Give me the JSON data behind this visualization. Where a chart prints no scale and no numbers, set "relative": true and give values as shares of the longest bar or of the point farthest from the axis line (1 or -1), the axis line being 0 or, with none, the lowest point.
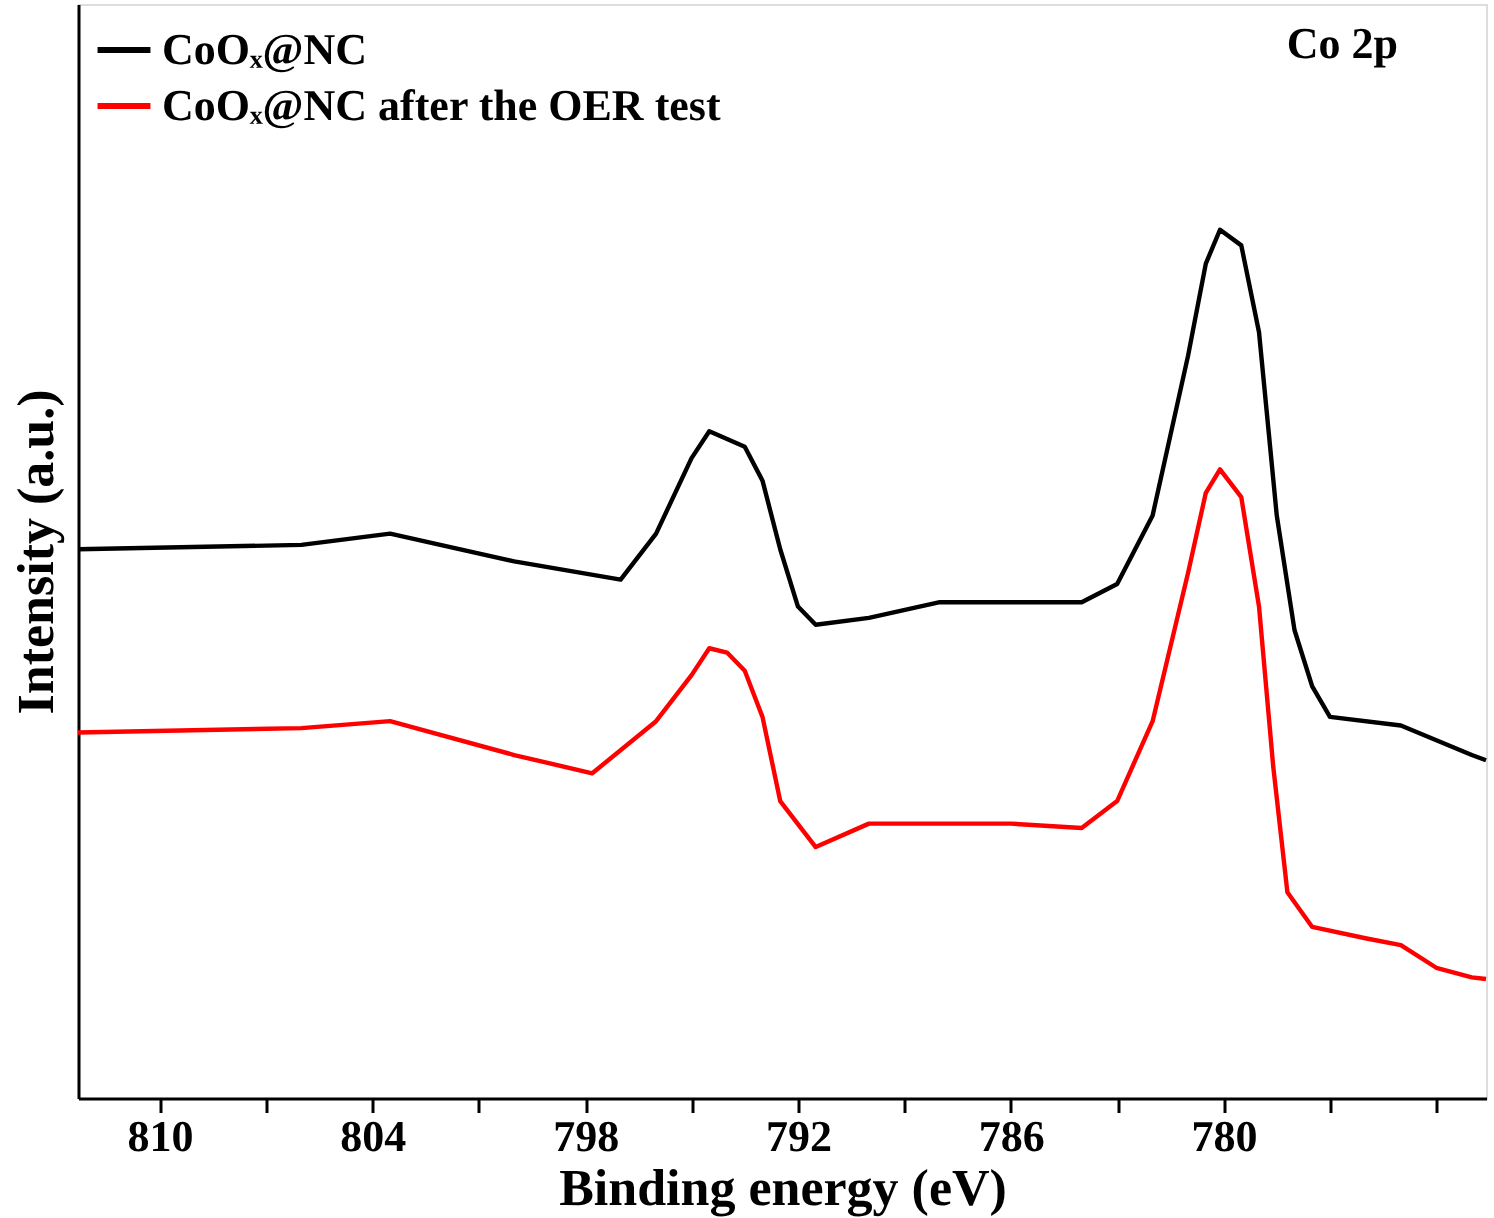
{
  "chart_data": {
    "type": "line",
    "relative": true,
    "xlabel": "Binding energy (eV)",
    "ylabel": "Intensity (a.u.)",
    "legend": "top left",
    "grid": false,
    "marker": "none",
    "line_style": "solid",
    "annotations": [
      "Co 2p"
    ],
    "xlim": [
      812.3,
      772.6
    ],
    "xticks": [
      810,
      {
        "value": 807,
        "label": null
      },
      804,
      {
        "value": 801,
        "label": null
      },
      798,
      {
        "value": 795,
        "label": null
      },
      792,
      {
        "value": 789,
        "label": null
      },
      786,
      {
        "value": 783,
        "label": null
      },
      780,
      {
        "value": 777,
        "label": null
      },
      {
        "value": 774,
        "label": null
      }
    ],
    "series": [
      {
        "name": "CoOₓ@NC",
        "color": "#000000",
        "x": [
          812.3,
          806,
          803.5,
          800,
          797,
          796,
          795,
          794.5,
          793.5,
          793,
          792.5,
          792,
          791.5,
          790,
          788,
          786,
          784,
          783,
          782,
          781,
          780.5,
          780.1,
          779.5,
          779,
          778.5,
          778,
          777.5,
          777,
          775,
          773,
          772.6
        ],
        "values": [
          0.632,
          0.637,
          0.65,
          0.618,
          0.597,
          0.65,
          0.737,
          0.768,
          0.75,
          0.711,
          0.632,
          0.566,
          0.545,
          0.553,
          0.571,
          0.571,
          0.571,
          0.592,
          0.671,
          0.855,
          0.961,
          1,
          0.982,
          0.882,
          0.671,
          0.539,
          0.474,
          0.439,
          0.429,
          0.395,
          0.389
        ]
      },
      {
        "name": "CoOₓ@NC after the OER test",
        "color": "#ff0000",
        "x": [
          812.3,
          806,
          803.5,
          800,
          797.8,
          796,
          795,
          794.5,
          794,
          793.5,
          793,
          792.5,
          791.5,
          790,
          786,
          784,
          783,
          782,
          781,
          780.5,
          780.1,
          779.5,
          779,
          778.6,
          778.2,
          777.5,
          776,
          775,
          774,
          773,
          772.6
        ],
        "values": [
          0.421,
          0.426,
          0.434,
          0.395,
          0.374,
          0.434,
          0.487,
          0.518,
          0.513,
          0.492,
          0.439,
          0.342,
          0.289,
          0.316,
          0.316,
          0.311,
          0.342,
          0.434,
          0.605,
          0.697,
          0.724,
          0.692,
          0.566,
          0.382,
          0.237,
          0.197,
          0.184,
          0.176,
          0.15,
          0.139,
          0.137
        ]
      }
    ]
  }
}
